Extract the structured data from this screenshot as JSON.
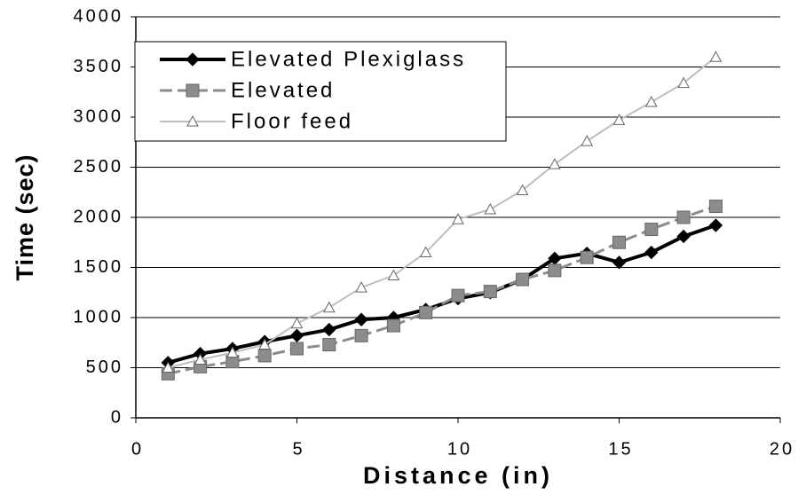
{
  "chart_data": {
    "type": "line",
    "xlabel": "Distance (in)",
    "ylabel": "Time (sec)",
    "x": [
      1,
      2,
      3,
      4,
      5,
      6,
      7,
      8,
      9,
      10,
      11,
      12,
      13,
      14,
      15,
      16,
      17,
      18
    ],
    "series": [
      {
        "name": "Elevated Plexiglass",
        "color": "#000000",
        "marker": "diamond",
        "values": [
          550,
          640,
          690,
          760,
          820,
          880,
          980,
          1000,
          1080,
          1190,
          1250,
          1380,
          1590,
          1640,
          1550,
          1650,
          1810,
          1920
        ]
      },
      {
        "name": "Elevated",
        "color": "#8c8c8c",
        "marker": "square",
        "values": [
          440,
          510,
          560,
          620,
          690,
          730,
          820,
          920,
          1050,
          1220,
          1260,
          1380,
          1470,
          1600,
          1750,
          1880,
          2000,
          2110
        ]
      },
      {
        "name": "Floor feed",
        "color": "#bdbdbd",
        "marker": "triangle",
        "values": [
          500,
          580,
          650,
          730,
          940,
          1100,
          1300,
          1420,
          1650,
          1980,
          2080,
          2270,
          2530,
          2760,
          2970,
          3150,
          3340,
          3600
        ]
      }
    ],
    "xlim": [
      0,
      20
    ],
    "xticks": [
      0,
      5,
      10,
      15,
      20
    ],
    "ylim": [
      0,
      4000
    ],
    "yticks": [
      0,
      500,
      1000,
      1500,
      2000,
      2500,
      3000,
      3500,
      4000
    ],
    "grid": true,
    "legend": "upper left"
  }
}
